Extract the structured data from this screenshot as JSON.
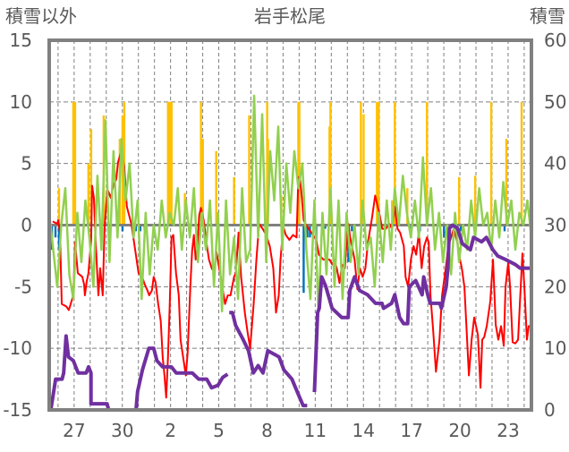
{
  "chart_data": {
    "type": "line",
    "title": "岩手松尾",
    "left_axis_label": "積雪以外",
    "right_axis_label": "積雪",
    "left_ylim": [
      -15,
      15
    ],
    "right_ylim": [
      0,
      60
    ],
    "left_ticks": [
      "15",
      "10",
      "5",
      "0",
      "-5",
      "-10",
      "-15"
    ],
    "left_tick_values": [
      15,
      10,
      5,
      0,
      -5,
      -10,
      -15
    ],
    "right_ticks": [
      "60",
      "50",
      "40",
      "30",
      "20",
      "10",
      "0"
    ],
    "right_tick_values": [
      60,
      50,
      40,
      30,
      20,
      10,
      0
    ],
    "x_range_days": [
      0,
      30
    ],
    "x_ticks": [
      "27",
      "30",
      "2",
      "5",
      "8",
      "11",
      "14",
      "17",
      "20",
      "23"
    ],
    "x_tick_days": [
      1.55,
      4.55,
      7.55,
      10.55,
      13.55,
      16.55,
      19.55,
      22.55,
      25.55,
      28.55
    ],
    "grid": true,
    "colors": {
      "red": "#FF0000",
      "green": "#92D050",
      "purple": "#7030A0",
      "orange": "#FFC000",
      "blue": "#0070C0",
      "frame": "#808080",
      "grid": "#7f7f7f"
    },
    "orange_bars": [
      [
        0.61,
        3
      ],
      [
        1.5,
        10
      ],
      [
        1.61,
        10
      ],
      [
        2.44,
        5
      ],
      [
        2.61,
        7.8
      ],
      [
        3.39,
        8.9
      ],
      [
        4.39,
        7
      ],
      [
        4.56,
        8.9
      ],
      [
        4.67,
        10
      ],
      [
        7.39,
        10
      ],
      [
        7.5,
        10
      ],
      [
        7.61,
        10
      ],
      [
        8.44,
        2.6
      ],
      [
        9.44,
        10
      ],
      [
        9.56,
        7
      ],
      [
        10.39,
        6
      ],
      [
        11.5,
        3.9
      ],
      [
        12.44,
        8.9
      ],
      [
        13.56,
        10
      ],
      [
        13.61,
        7
      ],
      [
        14.44,
        2.4
      ],
      [
        15.5,
        10
      ],
      [
        15.56,
        10
      ],
      [
        17.44,
        8
      ],
      [
        17.5,
        10
      ],
      [
        19.39,
        10
      ],
      [
        19.56,
        9
      ],
      [
        20.39,
        10
      ],
      [
        20.5,
        10
      ],
      [
        21.33,
        2
      ],
      [
        21.5,
        10
      ],
      [
        22.28,
        3
      ],
      [
        23.5,
        10
      ],
      [
        25.5,
        3.9
      ],
      [
        26.5,
        4
      ],
      [
        27.5,
        10
      ],
      [
        28.44,
        7
      ],
      [
        29.39,
        10
      ]
    ],
    "blue_bars": [
      [
        0.17,
        -2
      ],
      [
        0.39,
        -1
      ],
      [
        0.61,
        -2
      ],
      [
        4.56,
        -0.5
      ],
      [
        5.39,
        -0.5
      ],
      [
        5.67,
        -0.5
      ],
      [
        5.94,
        -0.5
      ],
      [
        15.83,
        -5.5
      ],
      [
        16.06,
        -1
      ],
      [
        16.22,
        -1
      ],
      [
        16.61,
        -1.5
      ],
      [
        17.17,
        -0.3
      ],
      [
        18.5,
        -1
      ],
      [
        18.61,
        -3
      ],
      [
        18.83,
        -0.5
      ],
      [
        22.44,
        -0.5
      ],
      [
        23.06,
        -0.5
      ],
      [
        24.56,
        -1
      ],
      [
        25.61,
        -0.5
      ],
      [
        28.33,
        -0.5
      ]
    ],
    "red_series": [
      [
        0.22,
        0.3
      ],
      [
        0.5,
        0.1
      ],
      [
        0.56,
        0.4
      ],
      [
        0.67,
        -0.6
      ],
      [
        0.78,
        -6.4
      ],
      [
        1.06,
        -6.6
      ],
      [
        1.22,
        -6.9
      ],
      [
        1.5,
        -5.7
      ],
      [
        1.61,
        -1.4
      ],
      [
        1.78,
        -3.9
      ],
      [
        2.06,
        -4.2
      ],
      [
        2.17,
        -4.8
      ],
      [
        2.22,
        -5.7
      ],
      [
        2.33,
        -4.6
      ],
      [
        2.44,
        -3.9
      ],
      [
        2.61,
        -1.2
      ],
      [
        2.67,
        3.2
      ],
      [
        2.78,
        2.2
      ],
      [
        2.89,
        -1.4
      ],
      [
        3.0,
        -4.2
      ],
      [
        3.06,
        -5.7
      ],
      [
        3.17,
        -3.5
      ],
      [
        3.33,
        -5.7
      ],
      [
        3.44,
        -0.3
      ],
      [
        3.61,
        2.9
      ],
      [
        3.72,
        2.6
      ],
      [
        3.83,
        2.2
      ],
      [
        4.0,
        3.3
      ],
      [
        4.17,
        3.7
      ],
      [
        4.28,
        5.1
      ],
      [
        4.44,
        5.8
      ],
      [
        4.56,
        5.5
      ],
      [
        4.67,
        4.7
      ],
      [
        4.83,
        1.5
      ],
      [
        5.11,
        0.1
      ],
      [
        5.28,
        -1.4
      ],
      [
        5.56,
        -3.9
      ],
      [
        5.78,
        -4.2
      ],
      [
        5.94,
        -4.8
      ],
      [
        6.11,
        -5.3
      ],
      [
        6.22,
        -5.7
      ],
      [
        6.39,
        -5.3
      ],
      [
        6.5,
        -4.2
      ],
      [
        6.61,
        -4.6
      ],
      [
        6.78,
        -6.4
      ],
      [
        6.94,
        -7.8
      ],
      [
        7.06,
        -10.7
      ],
      [
        7.17,
        -12.2
      ],
      [
        7.28,
        -14.0
      ],
      [
        7.39,
        -10.7
      ],
      [
        7.5,
        -6.4
      ],
      [
        7.61,
        -1.0
      ],
      [
        7.72,
        -0.8
      ],
      [
        7.89,
        -3.9
      ],
      [
        8.06,
        -5.7
      ],
      [
        8.17,
        -9.3
      ],
      [
        8.33,
        -10.7
      ],
      [
        8.5,
        -12.2
      ],
      [
        8.61,
        -10.4
      ],
      [
        8.78,
        -5.0
      ],
      [
        8.89,
        -2.1
      ],
      [
        9.0,
        -0.8
      ],
      [
        9.11,
        -2.8
      ],
      [
        9.22,
        -1.9
      ],
      [
        9.33,
        0.8
      ],
      [
        9.44,
        1.4
      ],
      [
        9.61,
        0.4
      ],
      [
        9.78,
        -1.4
      ],
      [
        9.94,
        -2.8
      ],
      [
        10.11,
        -3.5
      ],
      [
        10.28,
        -3.9
      ],
      [
        10.39,
        -2.1
      ],
      [
        10.67,
        -4.2
      ],
      [
        10.94,
        -6.4
      ],
      [
        11.11,
        -5.7
      ],
      [
        11.28,
        -5.7
      ],
      [
        11.5,
        -4.2
      ],
      [
        11.61,
        -3.9
      ],
      [
        11.78,
        -0.6
      ],
      [
        11.94,
        -4.2
      ],
      [
        12.17,
        -7.1
      ],
      [
        12.33,
        -8.6
      ],
      [
        12.5,
        -10.0
      ],
      [
        12.72,
        -6.4
      ],
      [
        12.89,
        -2.8
      ],
      [
        13.06,
        0.1
      ],
      [
        13.28,
        -0.3
      ],
      [
        13.5,
        -0.8
      ],
      [
        13.72,
        -1.7
      ],
      [
        13.94,
        -3.5
      ],
      [
        14.11,
        -7.1
      ],
      [
        14.28,
        -5.7
      ],
      [
        14.39,
        -2.8
      ],
      [
        14.56,
        -0.1
      ],
      [
        14.72,
        -0.8
      ],
      [
        14.94,
        -1.2
      ],
      [
        15.17,
        -0.8
      ],
      [
        15.39,
        -1.0
      ],
      [
        15.5,
        3.9
      ],
      [
        15.61,
        3.7
      ],
      [
        15.72,
        2.2
      ],
      [
        15.83,
        0.4
      ],
      [
        15.94,
        0.1
      ],
      [
        16.61,
        -1.2
      ],
      [
        16.78,
        -2.4
      ],
      [
        17.06,
        -2.8
      ],
      [
        17.44,
        -2.8
      ],
      [
        17.61,
        -3.2
      ],
      [
        17.72,
        -2.8
      ],
      [
        17.89,
        -3.5
      ],
      [
        18.06,
        -4.7
      ],
      [
        18.22,
        -3.2
      ],
      [
        18.39,
        -3.5
      ],
      [
        18.5,
        -1.4
      ],
      [
        18.61,
        0.1
      ],
      [
        18.72,
        -1.0
      ],
      [
        19.0,
        -2.8
      ],
      [
        19.17,
        -5.2
      ],
      [
        19.33,
        -3.5
      ],
      [
        19.5,
        -4.2
      ],
      [
        19.67,
        -3.5
      ],
      [
        19.83,
        -1.4
      ],
      [
        20.06,
        0.4
      ],
      [
        20.28,
        2.4
      ],
      [
        20.56,
        0.8
      ],
      [
        20.72,
        -0.3
      ],
      [
        20.94,
        -0.3
      ],
      [
        21.17,
        0.1
      ],
      [
        21.33,
        -0.3
      ],
      [
        21.5,
        1.5
      ],
      [
        21.67,
        -0.3
      ],
      [
        21.83,
        -0.6
      ],
      [
        22.06,
        -1.7
      ],
      [
        22.17,
        -4.2
      ],
      [
        22.33,
        -5.0
      ],
      [
        22.5,
        -2.8
      ],
      [
        22.67,
        -1.7
      ],
      [
        22.83,
        -2.4
      ],
      [
        23.0,
        -0.6
      ],
      [
        23.17,
        -3.5
      ],
      [
        23.33,
        -1.7
      ],
      [
        23.5,
        -1.0
      ],
      [
        23.61,
        -1.4
      ],
      [
        23.72,
        -5.7
      ],
      [
        23.89,
        -8.6
      ],
      [
        24.06,
        -11.9
      ],
      [
        24.28,
        -9.3
      ],
      [
        24.44,
        -5.7
      ],
      [
        24.67,
        -3.5
      ],
      [
        24.83,
        -1.7
      ],
      [
        25.0,
        -1.0
      ],
      [
        25.17,
        -0.3
      ],
      [
        25.39,
        -1.4
      ],
      [
        25.56,
        -2.8
      ],
      [
        25.67,
        -3.5
      ],
      [
        25.83,
        -5.0
      ],
      [
        25.94,
        -7.8
      ],
      [
        26.11,
        -12.2
      ],
      [
        26.28,
        -9.3
      ],
      [
        26.44,
        -7.5
      ],
      [
        26.67,
        -8.9
      ],
      [
        26.83,
        -13.2
      ],
      [
        26.94,
        -9.3
      ],
      [
        27.06,
        -9.1
      ],
      [
        27.22,
        -8.2
      ],
      [
        27.44,
        -6.2
      ],
      [
        27.61,
        -2.8
      ],
      [
        27.78,
        -8.1
      ],
      [
        27.94,
        -9.3
      ],
      [
        28.11,
        -8.2
      ],
      [
        28.28,
        -9.8
      ],
      [
        28.39,
        -5.0
      ],
      [
        28.56,
        -3.0
      ],
      [
        28.67,
        -5.0
      ],
      [
        28.83,
        -9.5
      ],
      [
        29.0,
        -9.6
      ],
      [
        29.17,
        -9.3
      ],
      [
        29.28,
        -6.4
      ],
      [
        29.44,
        -2.3
      ],
      [
        29.56,
        -5.0
      ],
      [
        29.72,
        -9.3
      ],
      [
        29.83,
        -8.2
      ],
      [
        30.0,
        -8.2
      ]
    ],
    "green_series": {
      "t_start": 0,
      "t_end": 30,
      "values": [
        1,
        -2,
        -5,
        0,
        3,
        -4,
        -6,
        1,
        -3,
        2,
        -1,
        -5,
        4,
        -2,
        8.5,
        -3,
        6,
        -1,
        7,
        2,
        5,
        -1,
        2,
        -6,
        1,
        -4,
        0,
        -2,
        2,
        -1,
        1,
        0,
        3,
        -2,
        2,
        -1,
        3,
        -3,
        1,
        -2,
        2,
        -5,
        1,
        -7,
        2,
        -4,
        -1,
        -6,
        3,
        -3,
        -2,
        10.5,
        -1,
        9,
        -3,
        6,
        2,
        8,
        -2,
        5,
        1,
        6,
        3,
        5,
        -2,
        -6,
        2,
        -7,
        1,
        -4,
        3,
        -5,
        2,
        -6,
        1,
        -3,
        0,
        -4,
        2,
        -2,
        -1,
        -5,
        1,
        -3,
        2,
        -2,
        3,
        0,
        4,
        1,
        -1,
        2,
        -1,
        5.5,
        0,
        3,
        -2,
        1,
        -3,
        0,
        -4,
        1,
        -3,
        0,
        -2,
        2,
        -1,
        3,
        0,
        1,
        -2,
        2,
        -1,
        3.5,
        0,
        2,
        -2,
        1,
        0,
        2,
        -1
      ]
    },
    "purple_snow_depth_segments": [
      [
        [
          0.1,
          0
        ],
        [
          0.4,
          5
        ],
        [
          0.8,
          5
        ],
        [
          0.9,
          6
        ],
        [
          1.05,
          12
        ],
        [
          1.2,
          8.6
        ],
        [
          1.5,
          8
        ],
        [
          1.8,
          6
        ],
        [
          2.3,
          6
        ],
        [
          2.45,
          7
        ],
        [
          2.6,
          6
        ],
        [
          2.6,
          1
        ],
        [
          3.6,
          1
        ],
        [
          3.7,
          0
        ],
        [
          5.4,
          0
        ],
        [
          5.5,
          3
        ],
        [
          5.8,
          6.5
        ],
        [
          6.2,
          10
        ],
        [
          6.5,
          10
        ],
        [
          6.7,
          8
        ],
        [
          7.05,
          7
        ],
        [
          7.6,
          7
        ],
        [
          7.9,
          6
        ],
        [
          8.9,
          6
        ],
        [
          9.3,
          5
        ],
        [
          9.8,
          5
        ],
        [
          10.1,
          3.6
        ],
        [
          10.5,
          4
        ],
        [
          10.8,
          5.3
        ],
        [
          11.1,
          5.8
        ]
      ],
      [
        [
          11.2,
          15.8
        ],
        [
          11.4,
          15.8
        ],
        [
          11.6,
          13.7
        ],
        [
          12.05,
          11.5
        ],
        [
          12.4,
          9.6
        ],
        [
          12.7,
          6
        ],
        [
          13.0,
          7.2
        ],
        [
          13.3,
          6
        ],
        [
          13.6,
          9.6
        ],
        [
          14.3,
          8.6
        ],
        [
          14.6,
          6.5
        ],
        [
          15.1,
          5
        ],
        [
          15.6,
          1.9
        ],
        [
          15.8,
          0.7
        ],
        [
          16.05,
          0.7
        ]
      ],
      [
        [
          16.5,
          2.9
        ],
        [
          16.7,
          15.8
        ],
        [
          16.8,
          16.5
        ],
        [
          16.95,
          21.6
        ],
        [
          17.2,
          20.1
        ],
        [
          17.6,
          16.5
        ],
        [
          18.2,
          15
        ],
        [
          18.6,
          15
        ],
        [
          18.7,
          19.4
        ],
        [
          19.0,
          21.6
        ],
        [
          19.3,
          19.4
        ],
        [
          19.8,
          18.7
        ],
        [
          20.3,
          17.3
        ],
        [
          20.7,
          17.3
        ],
        [
          20.8,
          16.5
        ],
        [
          21.3,
          17.3
        ],
        [
          21.5,
          18.7
        ],
        [
          21.8,
          15
        ],
        [
          22.05,
          14
        ],
        [
          22.3,
          14
        ],
        [
          22.4,
          20
        ],
        [
          22.8,
          21
        ],
        [
          23.2,
          18.7
        ],
        [
          23.3,
          21.6
        ],
        [
          23.55,
          18.7
        ],
        [
          23.7,
          17.3
        ],
        [
          24.3,
          17.3
        ],
        [
          24.4,
          16.5
        ],
        [
          24.7,
          20
        ],
        [
          24.8,
          23
        ],
        [
          24.9,
          29.5
        ],
        [
          25.1,
          30
        ],
        [
          25.4,
          29.5
        ],
        [
          25.7,
          27
        ],
        [
          26.2,
          26
        ],
        [
          26.4,
          28
        ],
        [
          26.9,
          27.3
        ],
        [
          27.2,
          28
        ],
        [
          27.6,
          26
        ],
        [
          27.9,
          25
        ],
        [
          28.4,
          24.4
        ],
        [
          29.0,
          23.6
        ],
        [
          29.3,
          23
        ],
        [
          29.9,
          23
        ]
      ]
    ]
  }
}
